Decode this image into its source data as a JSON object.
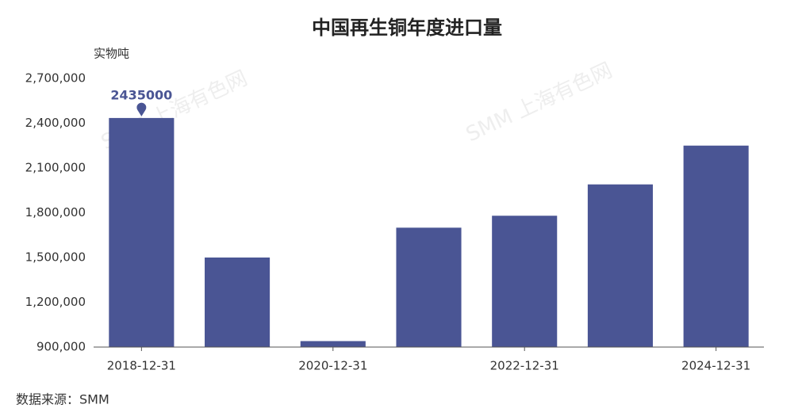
{
  "chart_data": {
    "type": "bar",
    "title": "中国再生铜年度进口量",
    "y_axis_label": "实物吨",
    "source": "数据来源：SMM",
    "watermark": "SMM 上海有色网",
    "categories": [
      "2018-12-31",
      null,
      "2020-12-31",
      null,
      "2022-12-31",
      null,
      "2024-12-31"
    ],
    "values": [
      2435000,
      1500000,
      940000,
      1700000,
      1780000,
      1990000,
      2249952
    ],
    "color": "#4a5594",
    "ylim": [
      900000,
      2700000
    ],
    "yticks": [
      {
        "value": 900000,
        "label": "900,000"
      },
      {
        "value": 1200000,
        "label": "1,200,000"
      },
      {
        "value": 1500000,
        "label": "1,500,000"
      },
      {
        "value": 1800000,
        "label": "1,800,000"
      },
      {
        "value": 2100000,
        "label": "2,100,000"
      },
      {
        "value": 2400000,
        "label": "2,400,000"
      },
      {
        "value": 2700000,
        "label": "2,700,000"
      }
    ],
    "grid": false
  }
}
